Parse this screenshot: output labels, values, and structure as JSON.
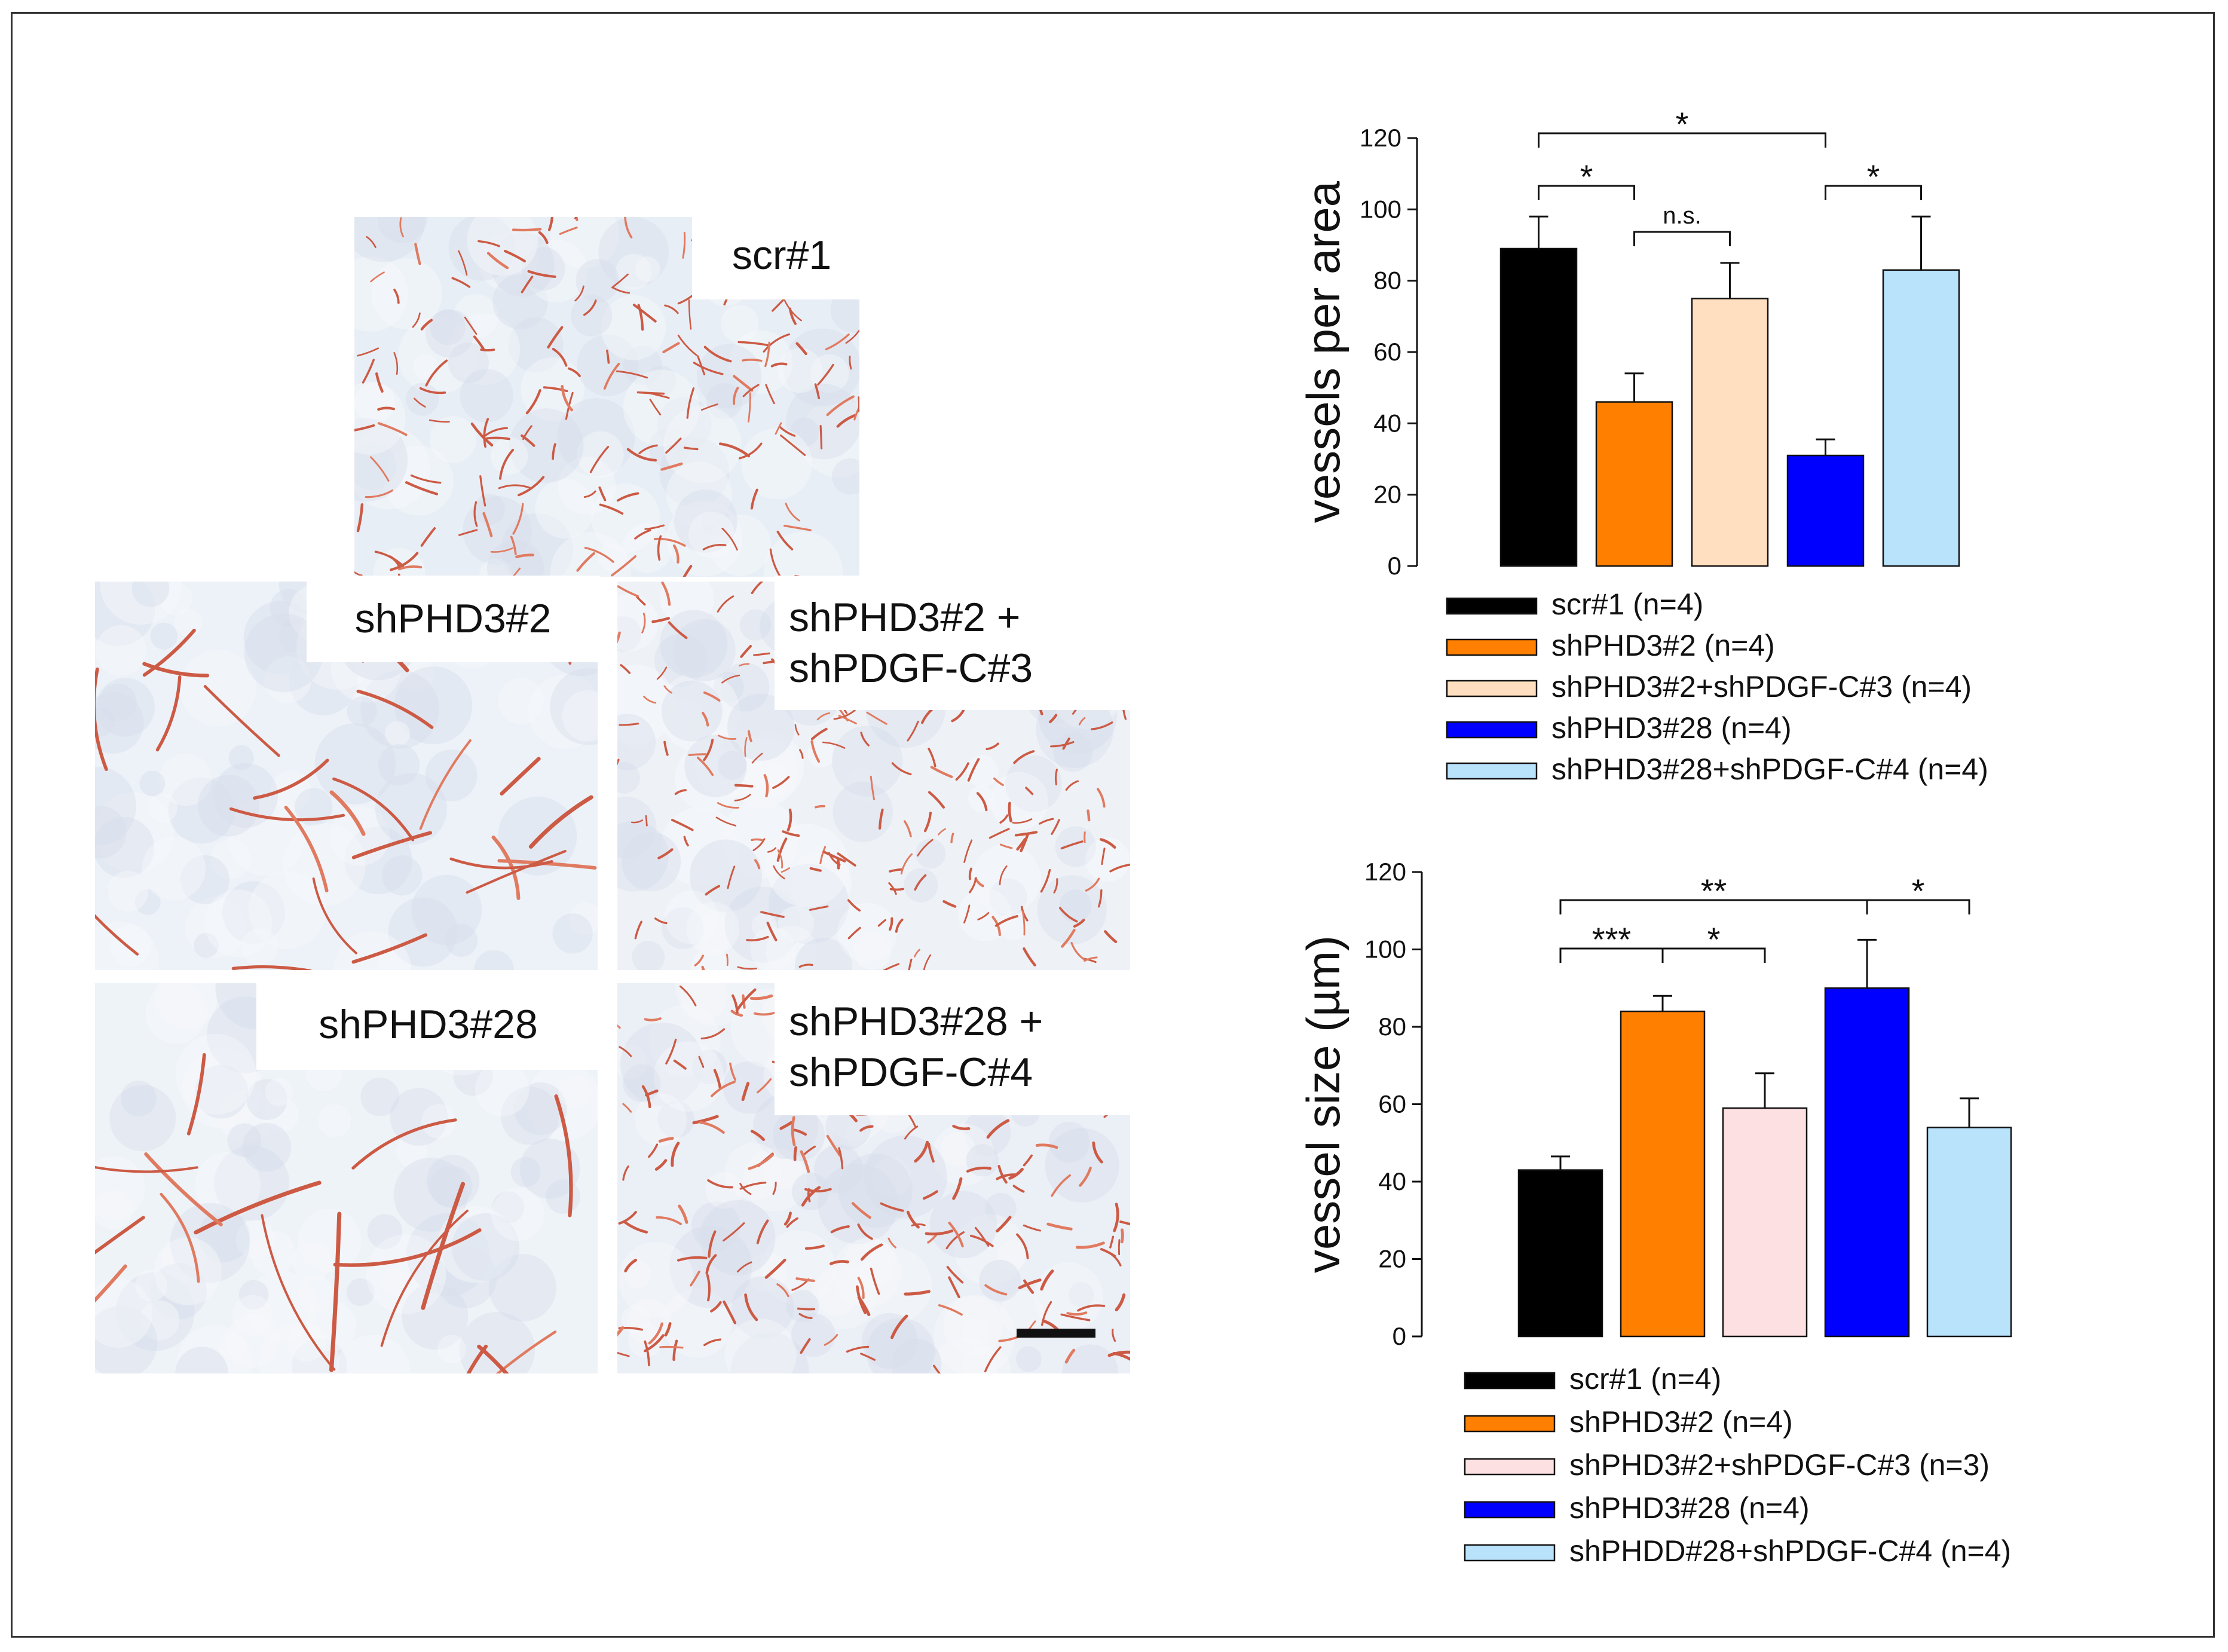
{
  "micrographs": [
    {
      "id": "scr1",
      "label": [
        "scr#1"
      ]
    },
    {
      "id": "shPHD3_2",
      "label": [
        "shPHD3#2"
      ]
    },
    {
      "id": "shPHD3_2_PDGF",
      "label": [
        "shPHD3#2 +",
        "shPDGF-C#3"
      ]
    },
    {
      "id": "shPHD3_28",
      "label": [
        "shPHD3#28"
      ]
    },
    {
      "id": "shPHD3_28_PDGF",
      "label": [
        "shPHD3#28 +",
        "shPDGF-C#4"
      ]
    }
  ],
  "chart_data": [
    {
      "type": "bar",
      "ylabel": "vessels per area",
      "ylim": [
        0,
        120
      ],
      "yticks": [
        0,
        20,
        40,
        60,
        80,
        100,
        120
      ],
      "categories": [
        "scr#1 (n=4)",
        "shPHD3#2 (n=4)",
        "shPHD3#2+shPDGF-C#3 (n=4)",
        "shPHD3#28 (n=4)",
        "shPHD3#28+shPDGF-C#4 (n=4)"
      ],
      "values": [
        89,
        46,
        75,
        31,
        83
      ],
      "errors": [
        9,
        8,
        10,
        4.5,
        15
      ],
      "colors": [
        "#000000",
        "#ff7f00",
        "#ffdfbf",
        "#0000ff",
        "#b9e2fb"
      ],
      "legend": "below",
      "annotations": [
        {
          "from": 0,
          "to": 3,
          "text": "*"
        },
        {
          "from": 0,
          "to": 1,
          "text": "*"
        },
        {
          "from": 1,
          "to": 2,
          "text": "n.s."
        },
        {
          "from": 3,
          "to": 4,
          "text": "*"
        }
      ]
    },
    {
      "type": "bar",
      "ylabel": "vessel size (µm)",
      "ylim": [
        0,
        120
      ],
      "yticks": [
        0,
        20,
        40,
        60,
        80,
        100,
        120
      ],
      "categories": [
        "scr#1 (n=4)",
        "shPHD3#2 (n=4)",
        "shPHD3#2+shPDGF-C#3 (n=3)",
        "shPHD3#28 (n=4)",
        "shPHDD#28+shPDGF-C#4 (n=4)"
      ],
      "values": [
        43,
        84,
        59,
        90,
        54
      ],
      "errors": [
        3.5,
        4,
        9,
        12.5,
        7.5
      ],
      "colors": [
        "#000000",
        "#ff7f00",
        "#fde0e1",
        "#0000ff",
        "#b9e2fb"
      ],
      "legend": "below",
      "annotations": [
        {
          "from": 0,
          "to": 3,
          "text": "**"
        },
        {
          "from": 0,
          "to": 1,
          "text": "***"
        },
        {
          "from": 1,
          "to": 2,
          "text": "*"
        },
        {
          "from": 3,
          "to": 4,
          "text": "*"
        }
      ]
    }
  ]
}
